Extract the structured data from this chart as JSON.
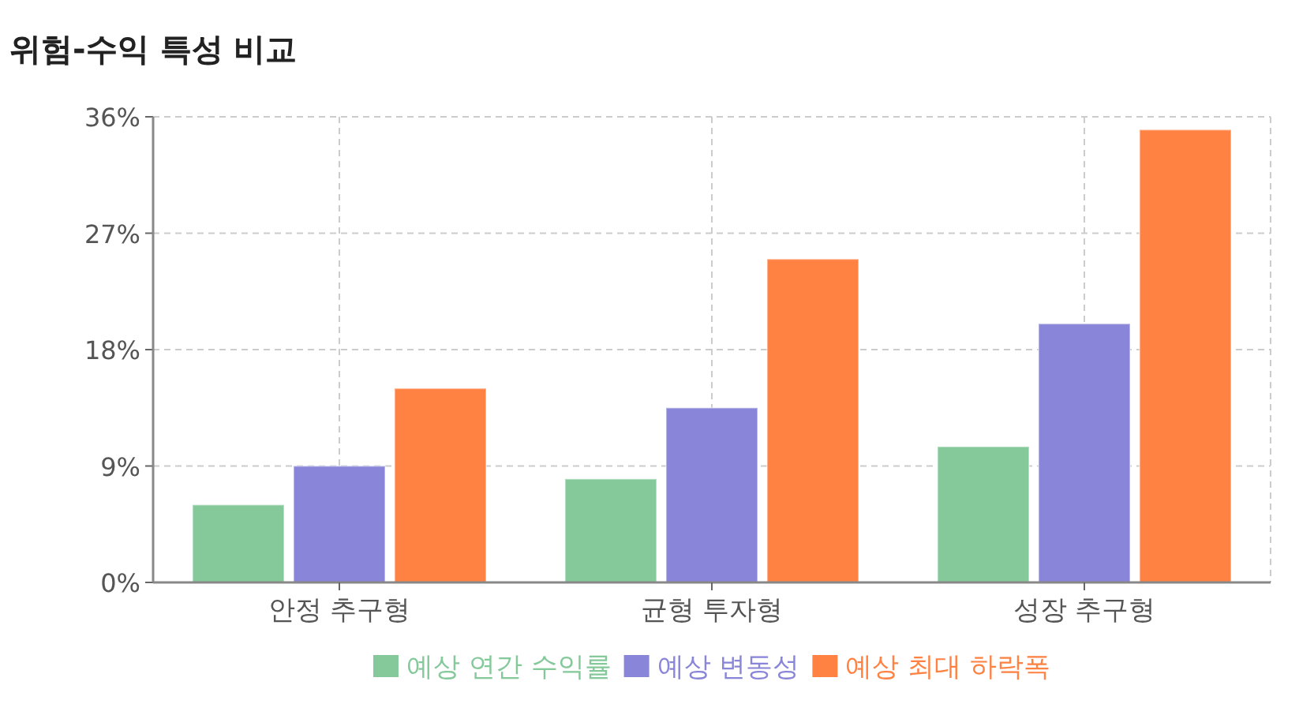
{
  "chart_data": {
    "type": "bar",
    "title": "위험-수익 특성 비교",
    "categories": [
      "안정 추구형",
      "균형 투자형",
      "성장 추구형"
    ],
    "series": [
      {
        "name": "예상 연간 수익률",
        "color": "#85c99b",
        "values": [
          6,
          8,
          10.5
        ]
      },
      {
        "name": "예상 변동성",
        "color": "#8985d8",
        "values": [
          9,
          13.5,
          20
        ]
      },
      {
        "name": "예상 최대 하락폭",
        "color": "#ff8243",
        "values": [
          15,
          25,
          35
        ]
      }
    ],
    "ylim": [
      0,
      36
    ],
    "yticks": [
      {
        "value": 0,
        "label": "0%"
      },
      {
        "value": 9,
        "label": "9%"
      },
      {
        "value": 18,
        "label": "18%"
      },
      {
        "value": 27,
        "label": "27%"
      },
      {
        "value": 36,
        "label": "36%"
      }
    ],
    "grid": true,
    "legend": "bottom"
  }
}
